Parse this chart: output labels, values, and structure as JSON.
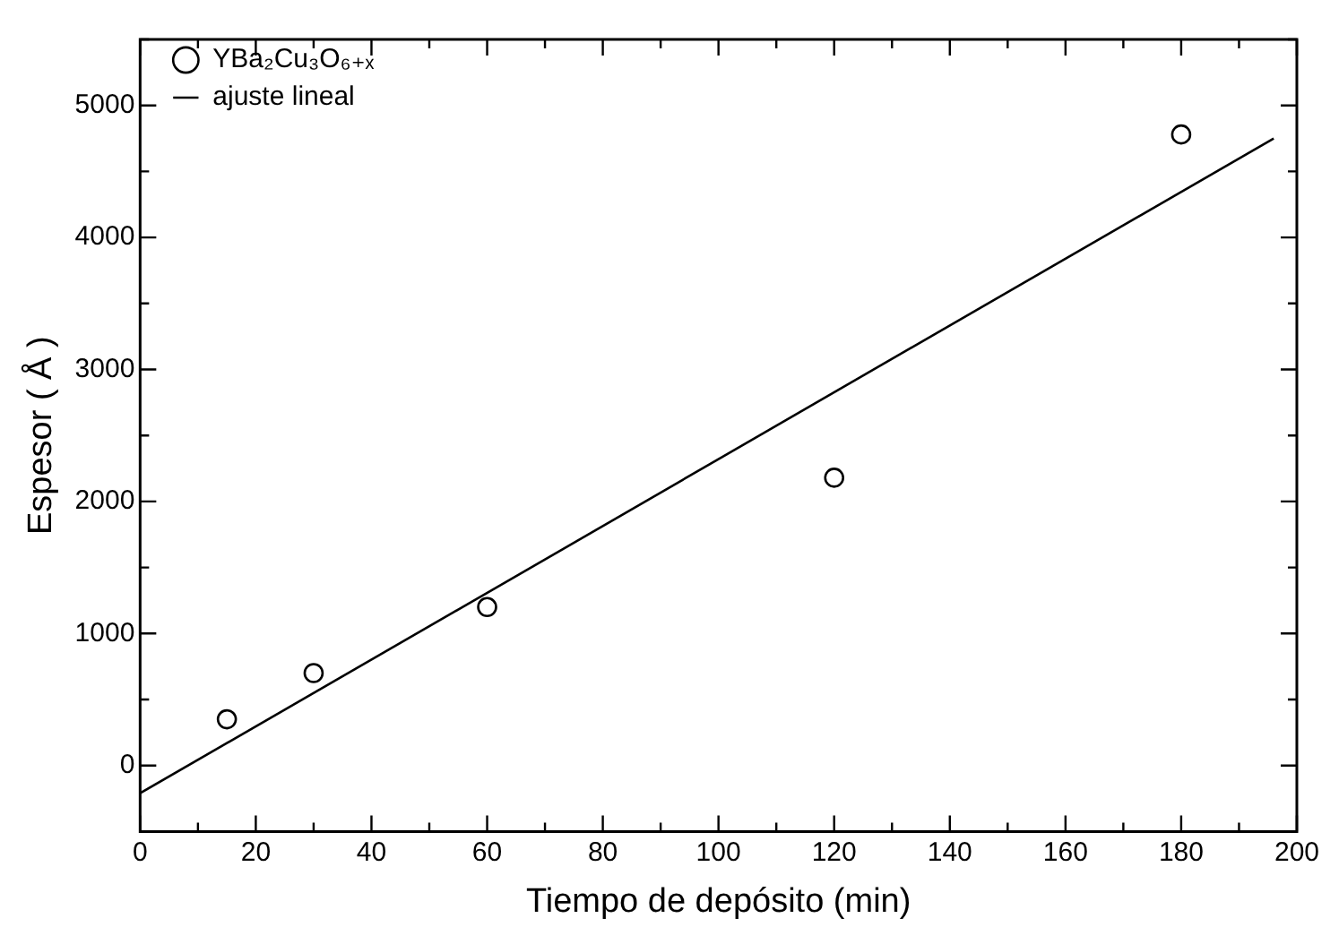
{
  "chart_data": {
    "type": "scatter",
    "xlabel": "Tiempo de depósito (min)",
    "ylabel": "Espesor ( Å )",
    "xlim": [
      0,
      200
    ],
    "ylim": [
      -500,
      5500
    ],
    "xticks": [
      0,
      {
        "value": 10,
        "label": null
      },
      20,
      {
        "value": 30,
        "label": null
      },
      40,
      {
        "value": 50,
        "label": null
      },
      60,
      {
        "value": 70,
        "label": null
      },
      80,
      {
        "value": 90,
        "label": null
      },
      100,
      {
        "value": 110,
        "label": null
      },
      120,
      {
        "value": 130,
        "label": null
      },
      140,
      {
        "value": 150,
        "label": null
      },
      160,
      {
        "value": 170,
        "label": null
      },
      180,
      {
        "value": 190,
        "label": null
      },
      200
    ],
    "yticks": [
      {
        "value": -500,
        "label": null
      },
      0,
      {
        "value": 500,
        "label": null
      },
      1000,
      {
        "value": 1500,
        "label": null
      },
      2000,
      {
        "value": 2500,
        "label": null
      },
      3000,
      {
        "value": 3500,
        "label": null
      },
      4000,
      {
        "value": 4500,
        "label": null
      },
      5000,
      {
        "value": 5500,
        "label": null
      }
    ],
    "grid": false,
    "legend": "top left",
    "series": [
      {
        "name": "YBa₂Cu₃O₆₊ₓ",
        "type": "scatter",
        "color": "#000000",
        "marker": "circle",
        "x": [
          15,
          30,
          60,
          120,
          180
        ],
        "values": [
          350,
          700,
          1200,
          2180,
          4780
        ]
      },
      {
        "name": "ajuste lineal",
        "type": "line",
        "color": "#000000",
        "marker": "none",
        "line_style": "solid",
        "x": [
          0,
          196
        ],
        "values": [
          -210,
          4750
        ]
      }
    ]
  }
}
